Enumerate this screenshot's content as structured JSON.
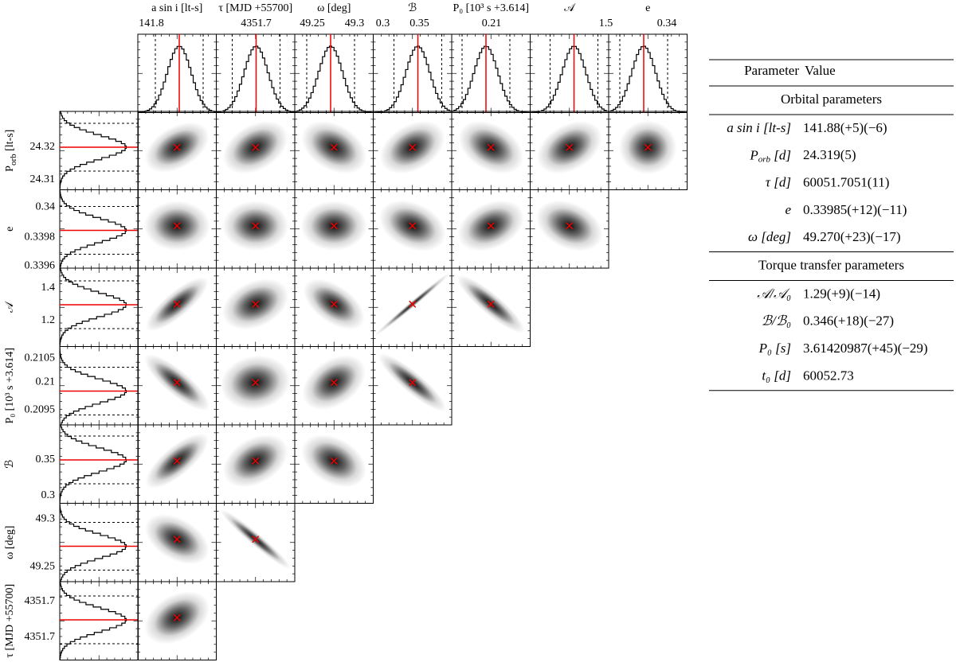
{
  "columns": [
    {
      "label": "a sin i [lt-s]",
      "ticks": [
        "141.8"
      ]
    },
    {
      "label": "τ [MJD +55700]",
      "ticks": [
        "4351.7"
      ]
    },
    {
      "label": "ω [deg]",
      "ticks": [
        "49.25",
        "49.3"
      ]
    },
    {
      "label": "ℬ",
      "ticks": [
        "0.3",
        "0.35"
      ]
    },
    {
      "label": "P₀ [10³ s +3.614]",
      "ticks": [
        "0.21"
      ]
    },
    {
      "label": "𝒜",
      "ticks": [
        "1.5"
      ]
    },
    {
      "label": "e",
      "ticks": [
        "0.34"
      ]
    }
  ],
  "rows": [
    {
      "label": [
        "P",
        "orb",
        " [lt-s]"
      ],
      "ticks": [
        "24.32",
        "24.31"
      ]
    },
    {
      "label": "e",
      "ticks": [
        "0.34",
        "0.3398",
        "0.3396"
      ]
    },
    {
      "label": "𝒜",
      "ticks": [
        "1.4",
        "1.2"
      ]
    },
    {
      "label": "P₀ [10³ s +3.614]",
      "ticks": [
        "0.2105",
        "0.21",
        "0.2095"
      ]
    },
    {
      "label": "ℬ",
      "ticks": [
        "0.35",
        "0.3"
      ]
    },
    {
      "label": "ω [deg]",
      "ticks": [
        "49.3",
        "49.25"
      ]
    },
    {
      "label": "τ [MJD +55700]",
      "ticks": [
        "4351.7",
        "4351.7"
      ]
    }
  ],
  "table": {
    "header": [
      "Parameter",
      "Value"
    ],
    "sections": [
      {
        "title": "Orbital parameters",
        "rows": [
          {
            "parameter": "a sin i [lt-s]",
            "value": "141.88(+5)(−6)"
          },
          {
            "parameter": [
              "P",
              "orb",
              " [d]"
            ],
            "value": "24.319(5)"
          },
          {
            "parameter": "τ [d]",
            "value": "60051.7051(11)"
          },
          {
            "parameter": "e",
            "value": "0.33985(+12)(−11)"
          },
          {
            "parameter": "ω [deg]",
            "value": "49.270(+23)(−17)"
          }
        ]
      },
      {
        "title": "Torque transfer parameters",
        "rows": [
          {
            "parameter": "𝒜/𝒜₀",
            "value": "1.29(+9)(−14)"
          },
          {
            "parameter": "ℬ/ℬ₀",
            "value": "0.346(+18)(−27)"
          },
          {
            "parameter": "P₀ [s]",
            "value": "3.61420987(+45)(−29)"
          },
          {
            "parameter": "t₀ [d]",
            "value": "60052.73"
          }
        ]
      }
    ]
  }
}
